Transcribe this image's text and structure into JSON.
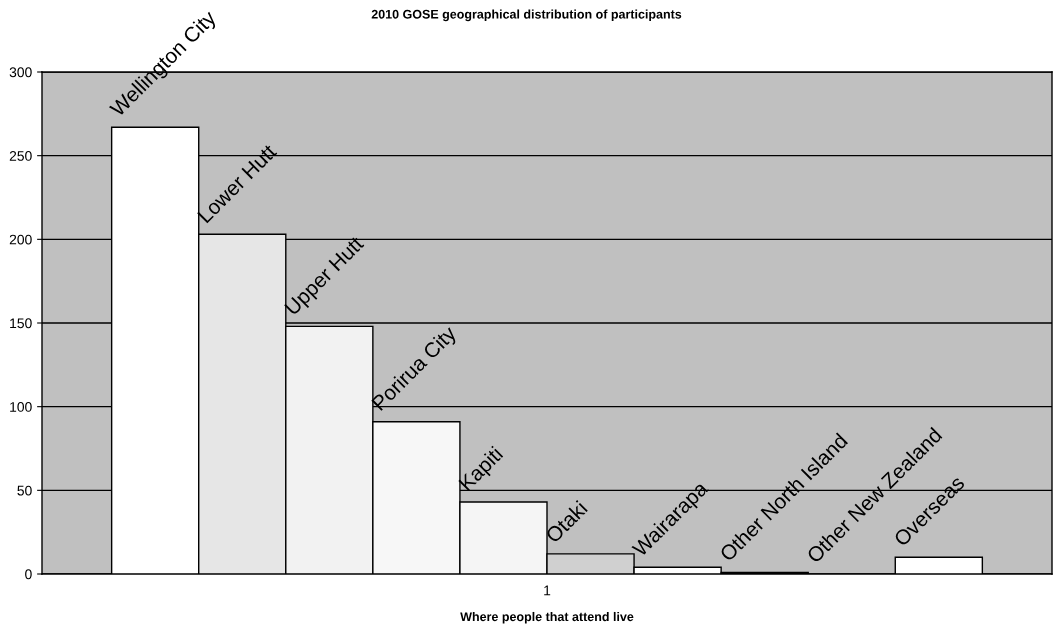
{
  "chart_data": {
    "type": "bar",
    "title": "2010 GOSE geographical distribution of participants",
    "xlabel": "Where people that attend live",
    "categories": [
      "1"
    ],
    "series": [
      {
        "name": "Wellington City",
        "color": "#ffffff",
        "values": [
          267
        ]
      },
      {
        "name": "Lower Hutt",
        "color": "#e6e6e6",
        "values": [
          203
        ]
      },
      {
        "name": "Upper Hutt",
        "color": "#f2f2f2",
        "values": [
          148
        ]
      },
      {
        "name": "Porirua City",
        "color": "#f7f7f7",
        "values": [
          91
        ]
      },
      {
        "name": "Kapiti",
        "color": "#f5f5f5",
        "values": [
          43
        ]
      },
      {
        "name": "Otaki",
        "color": "#d0d0d0",
        "values": [
          12
        ]
      },
      {
        "name": "Wairarapa",
        "color": "#ffffff",
        "values": [
          4
        ]
      },
      {
        "name": "Other North Island",
        "color": "#000000",
        "values": [
          1
        ]
      },
      {
        "name": "Other New Zealand",
        "values": [
          0
        ]
      },
      {
        "name": "Overseas",
        "color": "#ffffff",
        "values": [
          10
        ]
      }
    ],
    "ylim": [
      0,
      300
    ],
    "yticks": [
      0,
      50,
      100,
      150,
      200,
      250,
      300
    ],
    "grid": "y",
    "legend": false
  }
}
